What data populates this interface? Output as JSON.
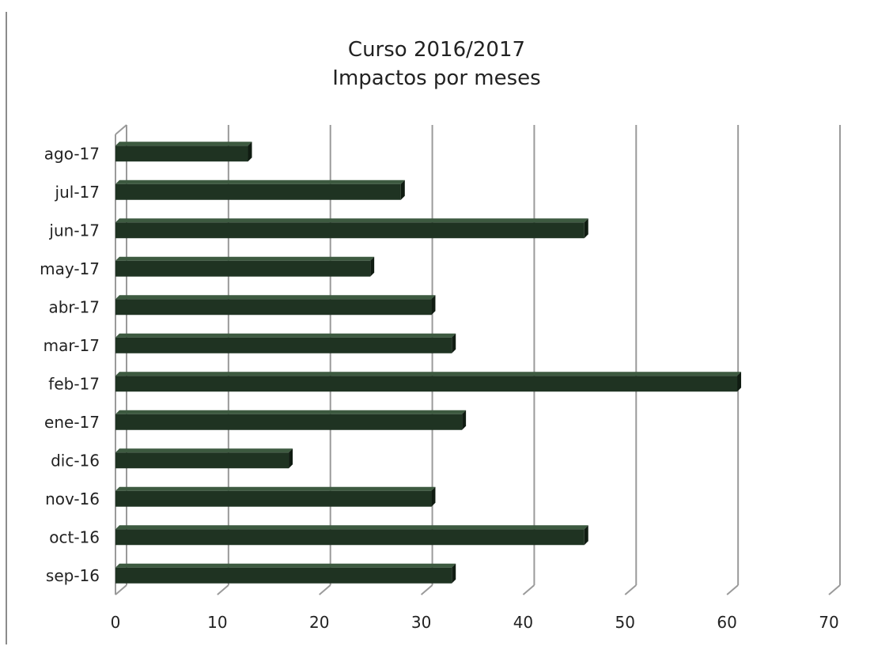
{
  "chart_data": {
    "type": "bar",
    "orientation": "horizontal",
    "title_lines": [
      "Curso 2016/2017",
      "Impactos por meses"
    ],
    "categories": [
      "sep-16",
      "oct-16",
      "nov-16",
      "dic-16",
      "ene-17",
      "feb-17",
      "mar-17",
      "abr-17",
      "may-17",
      "jun-17",
      "jul-17",
      "ago-17"
    ],
    "values": [
      33,
      46,
      31,
      17,
      34,
      61,
      33,
      31,
      25,
      46,
      28,
      13
    ],
    "xlim": [
      0,
      70
    ],
    "x_ticks": [
      0,
      10,
      20,
      30,
      40,
      50,
      60,
      70
    ],
    "grid": true,
    "legend": "none",
    "style": "3d",
    "colors": {
      "bar_front": "#1f3322",
      "bar_top": "#3d5a40",
      "bar_side": "#101c12",
      "grid": "#9a9a9a",
      "text": "#222222"
    }
  }
}
